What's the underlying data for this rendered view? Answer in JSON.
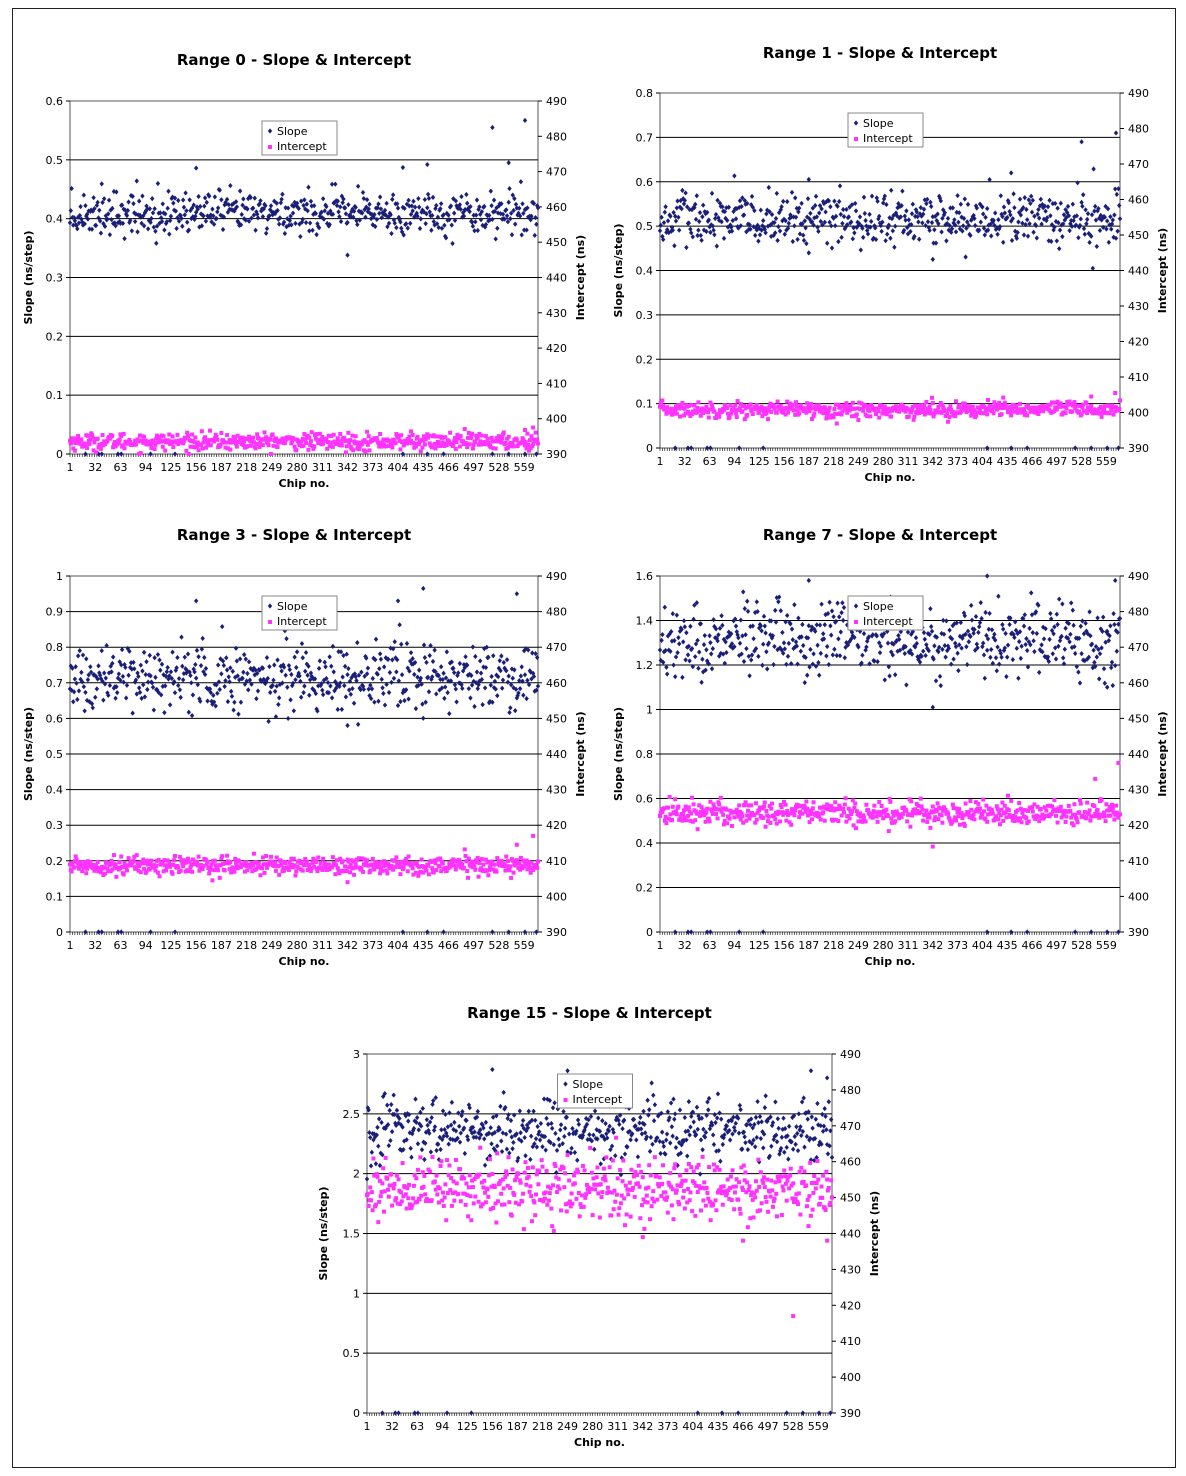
{
  "colors": {
    "slope": "#1a1f78",
    "intercept": "#ff33ff",
    "gridline": "#000000",
    "legend_border": "#888888"
  },
  "chart_data": [
    {
      "type": "scatter",
      "title": "Range 0 - Slope & Intercept",
      "xlabel": "Chip no.",
      "ylabel": "Slope (ns/step)",
      "y2label": "Intercept (ns)",
      "x_ticks": [
        "1",
        "32",
        "63",
        "94",
        "125",
        "156",
        "187",
        "218",
        "249",
        "280",
        "311",
        "342",
        "373",
        "404",
        "435",
        "466",
        "497",
        "528",
        "559"
      ],
      "xlim": [
        1,
        576
      ],
      "ylim": [
        0,
        0.6
      ],
      "y_ticks": [
        "0",
        "0.1",
        "0.2",
        "0.3",
        "0.4",
        "0.5",
        "0.6"
      ],
      "y2lim": [
        390,
        490
      ],
      "y2_ticks": [
        "390",
        "400",
        "410",
        "420",
        "430",
        "440",
        "450",
        "460",
        "470",
        "480",
        "490"
      ],
      "legend_position": "top-center",
      "gridlines": [
        0.1,
        0.2,
        0.3,
        0.4,
        0.5
      ],
      "series": [
        {
          "name": "Slope",
          "marker": "diamond",
          "axis": "left",
          "center": 0.41,
          "spread": 0.018,
          "outliers": [
            [
              520,
              0.555
            ],
            [
              560,
              0.567
            ],
            [
              342,
              0.338
            ],
            [
              156,
              0.486
            ],
            [
              440,
              0.492
            ],
            [
              410,
              0.487
            ],
            [
              540,
              0.495
            ]
          ],
          "zeros": [
            20,
            36,
            40,
            60,
            64,
            100,
            130,
            410,
            440,
            460,
            520,
            540,
            560,
            574
          ],
          "zero_value": 0
        },
        {
          "name": "Intercept",
          "marker": "square",
          "axis": "right",
          "center": 393.5,
          "spread": 1.2,
          "outliers": [
            [
              570,
              397.5
            ],
            [
              560,
              396.8
            ],
            [
              420,
              396.4
            ]
          ]
        }
      ]
    },
    {
      "type": "scatter",
      "title": "Range 1 - Slope & Intercept",
      "xlabel": "Chip no.",
      "ylabel": "Slope (ns/step)",
      "y2label": "Intercept (ns)",
      "x_ticks": [
        "1",
        "32",
        "63",
        "94",
        "125",
        "156",
        "187",
        "218",
        "249",
        "280",
        "311",
        "342",
        "373",
        "404",
        "435",
        "466",
        "497",
        "528",
        "559"
      ],
      "xlim": [
        1,
        576
      ],
      "ylim": [
        0,
        0.8
      ],
      "y_ticks": [
        "0",
        "0.1",
        "0.2",
        "0.3",
        "0.4",
        "0.5",
        "0.6",
        "0.7",
        "0.8"
      ],
      "y2lim": [
        390,
        490
      ],
      "y2_ticks": [
        "390",
        "400",
        "410",
        "420",
        "430",
        "440",
        "450",
        "460",
        "470",
        "480",
        "490"
      ],
      "legend_position": "top-center",
      "gridlines": [
        0.1,
        0.2,
        0.3,
        0.4,
        0.5,
        0.6,
        0.7
      ],
      "series": [
        {
          "name": "Slope",
          "marker": "diamond",
          "axis": "left",
          "center": 0.515,
          "spread": 0.03,
          "outliers": [
            [
              528,
              0.69
            ],
            [
              571,
              0.71
            ],
            [
              342,
              0.425
            ],
            [
              187,
              0.605
            ],
            [
              440,
              0.62
            ]
          ],
          "zeros": [
            20,
            36,
            40,
            60,
            64,
            100,
            130,
            410,
            440,
            460,
            520,
            540,
            560,
            574
          ],
          "zero_value": 0
        },
        {
          "name": "Intercept",
          "marker": "square",
          "axis": "right",
          "center": 400.8,
          "spread": 1.1,
          "outliers": [
            [
              570,
              405.5
            ],
            [
              540,
              404.5
            ],
            [
              430,
              404.2
            ]
          ]
        }
      ]
    },
    {
      "type": "scatter",
      "title": "Range 3 - Slope & Intercept",
      "xlabel": "Chip no.",
      "ylabel": "Slope (ns/step)",
      "y2label": "Intercept (ns)",
      "x_ticks": [
        "1",
        "32",
        "63",
        "94",
        "125",
        "156",
        "187",
        "218",
        "249",
        "280",
        "311",
        "342",
        "373",
        "404",
        "435",
        "466",
        "497",
        "528",
        "559"
      ],
      "xlim": [
        1,
        576
      ],
      "ylim": [
        0,
        1
      ],
      "y_ticks": [
        "0",
        "0.1",
        "0.2",
        "0.3",
        "0.4",
        "0.5",
        "0.6",
        "0.7",
        "0.8",
        "0.9",
        "1"
      ],
      "y2lim": [
        390,
        490
      ],
      "y2_ticks": [
        "390",
        "400",
        "410",
        "420",
        "430",
        "440",
        "450",
        "460",
        "470",
        "480",
        "490"
      ],
      "legend_position": "top-center",
      "gridlines": [
        0.1,
        0.2,
        0.3,
        0.4,
        0.5,
        0.6,
        0.7,
        0.8,
        0.9
      ],
      "series": [
        {
          "name": "Slope",
          "marker": "diamond",
          "axis": "left",
          "center": 0.715,
          "spread": 0.045,
          "outliers": [
            [
              435,
              0.965
            ],
            [
              550,
              0.95
            ],
            [
              156,
              0.93
            ],
            [
              342,
              0.58
            ],
            [
              404,
              0.93
            ]
          ],
          "zeros": [
            20,
            36,
            40,
            60,
            64,
            100,
            130,
            410,
            440,
            460,
            520,
            540,
            560,
            574
          ],
          "zero_value": 0
        },
        {
          "name": "Intercept",
          "marker": "square",
          "axis": "right",
          "center": 408.7,
          "spread": 1.3,
          "outliers": [
            [
              570,
              417
            ],
            [
              550,
              414.5
            ],
            [
              342,
              404
            ]
          ]
        }
      ]
    },
    {
      "type": "scatter",
      "title": "Range 7 - Slope & Intercept",
      "xlabel": "Chip no.",
      "ylabel": "Slope (ns/step)",
      "y2label": "Intercept (ns)",
      "x_ticks": [
        "1",
        "32",
        "63",
        "94",
        "125",
        "156",
        "187",
        "218",
        "249",
        "280",
        "311",
        "342",
        "373",
        "404",
        "435",
        "466",
        "497",
        "528",
        "559"
      ],
      "xlim": [
        1,
        576
      ],
      "ylim": [
        0,
        1.6
      ],
      "y_ticks": [
        "0",
        "0.2",
        "0.4",
        "0.6",
        "0.8",
        "1",
        "1.2",
        "1.4",
        "1.6"
      ],
      "y2lim": [
        390,
        490
      ],
      "y2_ticks": [
        "390",
        "400",
        "410",
        "420",
        "430",
        "440",
        "450",
        "460",
        "470",
        "480",
        "490"
      ],
      "legend_position": "top-center",
      "gridlines": [
        0.2,
        0.4,
        0.6,
        0.8,
        1.0,
        1.2,
        1.4
      ],
      "series": [
        {
          "name": "Slope",
          "marker": "diamond",
          "axis": "left",
          "center": 1.31,
          "spread": 0.085,
          "outliers": [
            [
              410,
              1.6
            ],
            [
              187,
              1.58
            ],
            [
              342,
              1.01
            ],
            [
              570,
              1.58
            ],
            [
              560,
              1.1
            ]
          ],
          "zeros": [
            20,
            36,
            40,
            60,
            64,
            100,
            130,
            410,
            440,
            460,
            520,
            540,
            560,
            574
          ],
          "zero_value": 0
        },
        {
          "name": "Intercept",
          "marker": "square",
          "axis": "right",
          "center": 423.5,
          "spread": 1.8,
          "outliers": [
            [
              574,
              437.5
            ],
            [
              545,
              433
            ],
            [
              342,
              414
            ]
          ]
        }
      ]
    },
    {
      "type": "scatter",
      "title": "Range 15 - Slope & Intercept",
      "xlabel": "Chip no.",
      "ylabel": "Slope (ns/step)",
      "y2label": "Intercept (ns)",
      "x_ticks": [
        "1",
        "32",
        "63",
        "94",
        "125",
        "156",
        "187",
        "218",
        "249",
        "280",
        "311",
        "342",
        "373",
        "404",
        "435",
        "466",
        "497",
        "528",
        "559"
      ],
      "xlim": [
        1,
        576
      ],
      "ylim": [
        0,
        3
      ],
      "y_ticks": [
        "0",
        "0.5",
        "1",
        "1.5",
        "2",
        "2.5",
        "3"
      ],
      "y2lim": [
        390,
        490
      ],
      "y2_ticks": [
        "390",
        "400",
        "410",
        "420",
        "430",
        "440",
        "450",
        "460",
        "470",
        "480",
        "490"
      ],
      "legend_position": "top-center",
      "gridlines": [
        0.5,
        1.0,
        1.5,
        2.0,
        2.5
      ],
      "series": [
        {
          "name": "Slope",
          "marker": "diamond",
          "axis": "left",
          "center": 2.36,
          "spread": 0.13,
          "outliers": [
            [
              156,
              2.87
            ],
            [
              249,
              2.86
            ],
            [
              550,
              2.86
            ],
            [
              570,
              2.8
            ]
          ],
          "zeros": [
            20,
            36,
            40,
            60,
            64,
            100,
            130,
            410,
            440,
            460,
            520,
            540,
            560,
            574
          ],
          "zero_value": 0
        },
        {
          "name": "Intercept",
          "marker": "square",
          "axis": "right",
          "center": 452.5,
          "spread": 4.2,
          "outliers": [
            [
              528,
              417
            ],
            [
              342,
              439
            ],
            [
              466,
              438
            ],
            [
              570,
              438
            ]
          ]
        }
      ]
    }
  ]
}
